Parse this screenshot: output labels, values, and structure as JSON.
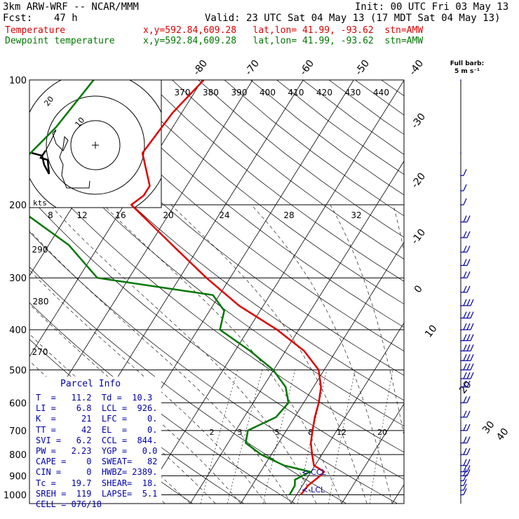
{
  "header": {
    "model": "3km ARW-WRF -- NCAR/MMM",
    "init": "Init: 00 UTC Fri 03 May 13",
    "fcst_label": "Fcst:",
    "fcst_value": "47 h",
    "valid": "Valid: 23 UTC Sat 04 May 13 (17 MDT Sat 04 May 13)",
    "temp_label": "Temperature",
    "temp_info": "x,y=592.84,609.28   lat,lon= 41.99, -93.62  stn=AMW",
    "dew_label": "Dewpoint temperature",
    "dew_info": "x,y=592.84,609.28   lat,lon= 41.99, -93.62  stn=AMW"
  },
  "colors": {
    "temperature": "#dd0000",
    "dewpoint": "#007700",
    "text": "#0000aa",
    "barbs": "#0000aa",
    "hodograph": "#000000"
  },
  "wind_legend": {
    "line1": "Full barb:",
    "line2": "5 m s⁻¹"
  },
  "hodograph": {
    "units": "kts",
    "ring_labels": [
      "10",
      "20"
    ]
  },
  "parcel_info": {
    "title": "Parcel Info",
    "rows": [
      "T  =   11.2  Td =  10.3",
      "LI =    6.8  LCL =  926.",
      "K  =     21  LFC =    0.",
      "TT =     42  EL  =    0.",
      "SVI =   6.2  CCL =  844.",
      "PW =   2.23  YGP =   0.0",
      "CAPE =    0  SWEAT=   82",
      "CIN =     0  HWBZ= 2389.",
      "Tc =   19.7  SHEAR=  18.",
      "SREH =  119  LAPSE=  5.1",
      "CELL = 076/18"
    ]
  },
  "level_labels": [
    "<-CCL",
    "<-LCL"
  ],
  "chart_data": {
    "type": "skew-t log-p",
    "y_axis_ticks": [
      "100",
      "200",
      "300",
      "400",
      "500",
      "600",
      "700",
      "800",
      "900",
      "1000"
    ],
    "pressure_levels": [
      100,
      200,
      300,
      400,
      500,
      600,
      700,
      800,
      900,
      1000
    ],
    "isotherm_labels": [
      "-80",
      "-70",
      "-60",
      "-50",
      "-40",
      "-30",
      "-20",
      "-10",
      "0",
      "10",
      "20",
      "30",
      "40"
    ],
    "theta_labels": [
      "370",
      "380",
      "390",
      "400",
      "410",
      "420",
      "430",
      "440"
    ],
    "mixing_ratio_labels_upper": [
      "8",
      "12",
      "16",
      "20",
      "24",
      "28",
      "32"
    ],
    "mixing_ratio_labels_lower": [
      "2",
      "3",
      "5",
      "8",
      "12",
      "20"
    ],
    "dry_adiabat_labels": [
      "290",
      "280",
      "270"
    ],
    "series": [
      {
        "name": "Temperature",
        "points": [
          [
            100,
            -59.7
          ],
          [
            120,
            -61.8
          ],
          [
            150,
            -62.8
          ],
          [
            180,
            -57.3
          ],
          [
            190,
            -57.3
          ],
          [
            200,
            -58.6
          ],
          [
            250,
            -45.5
          ],
          [
            300,
            -34.7
          ],
          [
            350,
            -24.8
          ],
          [
            400,
            -14.3
          ],
          [
            450,
            -6.3
          ],
          [
            500,
            -1.1
          ],
          [
            550,
            1.5
          ],
          [
            600,
            3.0
          ],
          [
            650,
            4.0
          ],
          [
            700,
            5.2
          ],
          [
            750,
            6.4
          ],
          [
            800,
            8.1
          ],
          [
            850,
            9.8
          ],
          [
            880,
            12.6
          ],
          [
            900,
            12.3
          ],
          [
            950,
            11.1
          ],
          [
            1000,
            10.8
          ]
        ]
      },
      {
        "name": "Dewpoint temperature",
        "points": [
          [
            100,
            -81.5
          ],
          [
            130,
            -83.1
          ],
          [
            160,
            -85.8
          ],
          [
            180,
            -83.9
          ],
          [
            200,
            -82.0
          ],
          [
            250,
            -66.0
          ],
          [
            300,
            -56.3
          ],
          [
            330,
            -31.3
          ],
          [
            360,
            -27.1
          ],
          [
            400,
            -25.6
          ],
          [
            450,
            -17.0
          ],
          [
            500,
            -10.1
          ],
          [
            550,
            -5.5
          ],
          [
            600,
            -3.0
          ],
          [
            650,
            -3.7
          ],
          [
            700,
            -7.6
          ],
          [
            750,
            -6.5
          ],
          [
            800,
            -2.0
          ],
          [
            850,
            3.9
          ],
          [
            880,
            9.8
          ],
          [
            920,
            7.8
          ],
          [
            950,
            8.5
          ],
          [
            1000,
            8.6
          ]
        ]
      }
    ],
    "wind_barbs": [
      {
        "p": 100,
        "full_barbs": 0
      },
      {
        "p": 150,
        "full_barbs": 0
      },
      {
        "p": 170,
        "full_barbs": 1
      },
      {
        "p": 185,
        "full_barbs": 1
      },
      {
        "p": 200,
        "full_barbs": 1
      },
      {
        "p": 220,
        "full_barbs": 2
      },
      {
        "p": 240,
        "full_barbs": 2
      },
      {
        "p": 260,
        "full_barbs": 2
      },
      {
        "p": 280,
        "full_barbs": 2
      },
      {
        "p": 300,
        "full_barbs": 2
      },
      {
        "p": 325,
        "full_barbs": 2
      },
      {
        "p": 350,
        "full_barbs": 3
      },
      {
        "p": 375,
        "full_barbs": 3
      },
      {
        "p": 400,
        "full_barbs": 3
      },
      {
        "p": 425,
        "full_barbs": 3
      },
      {
        "p": 450,
        "full_barbs": 3
      },
      {
        "p": 475,
        "full_barbs": 3
      },
      {
        "p": 500,
        "full_barbs": 3
      },
      {
        "p": 525,
        "full_barbs": 3
      },
      {
        "p": 550,
        "full_barbs": 2
      },
      {
        "p": 600,
        "full_barbs": 2
      },
      {
        "p": 650,
        "full_barbs": 2
      },
      {
        "p": 700,
        "full_barbs": 2
      },
      {
        "p": 750,
        "full_barbs": 2
      },
      {
        "p": 800,
        "full_barbs": 2
      },
      {
        "p": 850,
        "full_barbs": 2
      },
      {
        "p": 880,
        "full_barbs": 2
      },
      {
        "p": 900,
        "full_barbs": 2
      },
      {
        "p": 925,
        "full_barbs": 1
      },
      {
        "p": 950,
        "full_barbs": 1
      },
      {
        "p": 975,
        "full_barbs": 1
      },
      {
        "p": 1000,
        "full_barbs": 1
      }
    ]
  }
}
